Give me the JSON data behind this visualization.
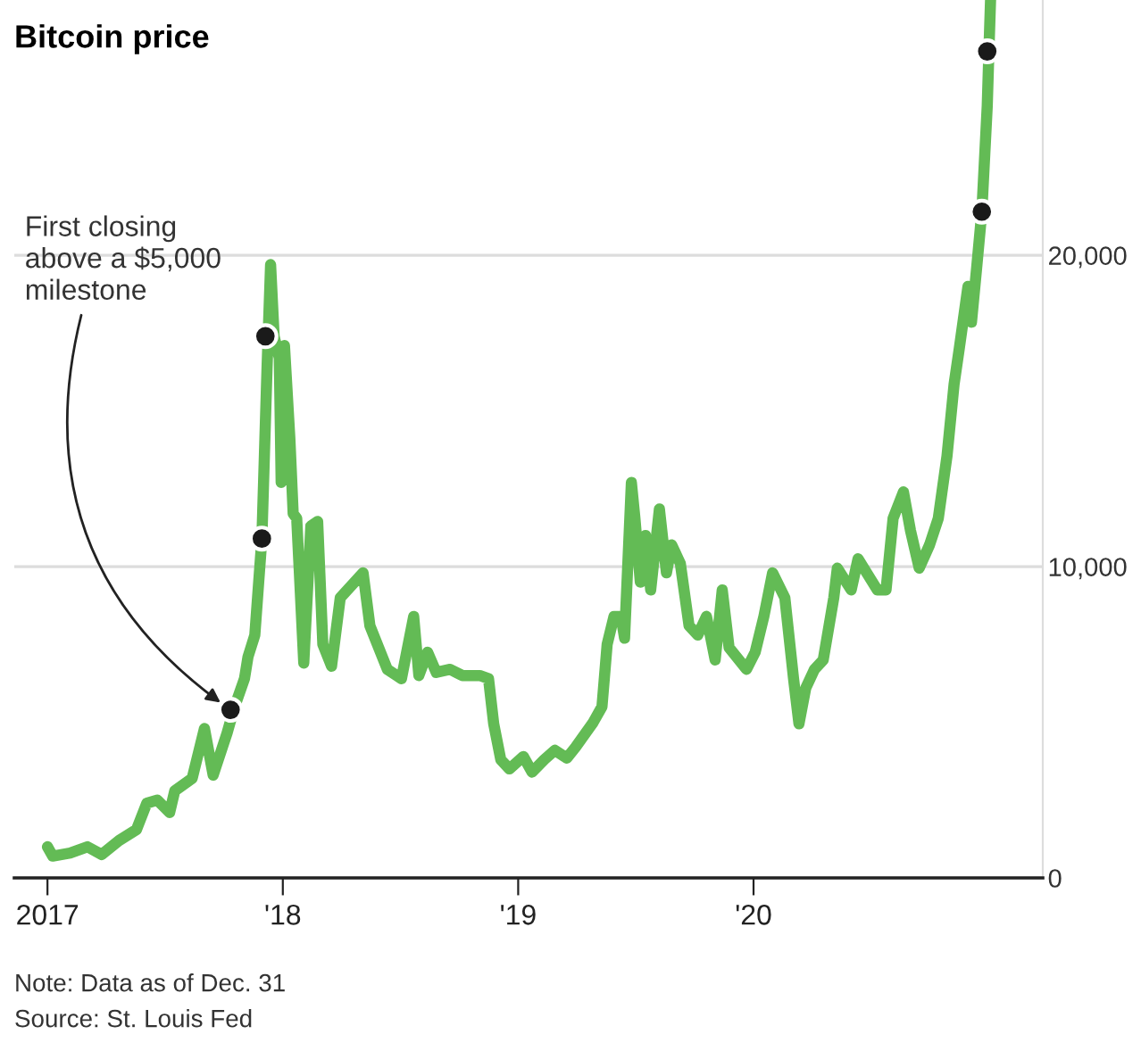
{
  "chart_data": {
    "type": "line",
    "title": "Bitcoin price",
    "x": [
      2017.0,
      2017.022,
      2017.096,
      2017.17,
      2017.23,
      2017.304,
      2017.378,
      2017.422,
      2017.467,
      2017.519,
      2017.541,
      2017.615,
      2017.667,
      2017.704,
      2017.763,
      2017.793,
      2017.837,
      2017.852,
      2017.881,
      2017.911,
      2017.933,
      2017.948,
      2017.963,
      2017.985,
      2017.993,
      2018.007,
      2018.03,
      2018.044,
      2018.059,
      2018.089,
      2018.119,
      2018.148,
      2018.17,
      2018.207,
      2018.244,
      2018.341,
      2018.37,
      2018.444,
      2018.504,
      2018.556,
      2018.578,
      2018.615,
      2018.652,
      2018.711,
      2018.763,
      2018.837,
      2018.874,
      2018.896,
      2018.926,
      2018.963,
      2019.022,
      2019.059,
      2019.111,
      2019.156,
      2019.207,
      2019.244,
      2019.319,
      2019.356,
      2019.378,
      2019.407,
      2019.437,
      2019.452,
      2019.481,
      2019.496,
      2019.519,
      2019.541,
      2019.563,
      2019.6,
      2019.63,
      2019.652,
      2019.689,
      2019.726,
      2019.763,
      2019.8,
      2019.837,
      2019.867,
      2019.896,
      2019.97,
      2020.007,
      2020.044,
      2020.081,
      2020.133,
      2020.17,
      2020.193,
      2020.222,
      2020.259,
      2020.296,
      2020.341,
      2020.356,
      2020.415,
      2020.444,
      2020.489,
      2020.526,
      2020.563,
      2020.593,
      2020.637,
      2020.667,
      2020.704,
      2020.748,
      2020.785,
      2020.822,
      2020.852,
      2020.874,
      2020.911,
      2020.926,
      2020.948,
      2020.97,
      2020.993,
      2021.0,
      2021.007
    ],
    "series": [
      {
        "color": "#63bb55",
        "values": [
          1000,
          700,
          800,
          1000,
          750,
          1200,
          1550,
          2400,
          2500,
          2100,
          2800,
          3200,
          4800,
          3300,
          4650,
          5450,
          6400,
          7100,
          7800,
          10900,
          16400,
          19700,
          17400,
          16700,
          12700,
          17100,
          14100,
          11700,
          11550,
          6900,
          11300,
          11450,
          7500,
          6800,
          9000,
          9800,
          8100,
          6700,
          6400,
          8400,
          6500,
          7250,
          6600,
          6700,
          6500,
          6500,
          6400,
          4950,
          3800,
          3500,
          3900,
          3400,
          3800,
          4100,
          3850,
          4200,
          5000,
          5500,
          7500,
          8400,
          8400,
          7700,
          12700,
          11550,
          9500,
          11000,
          9250,
          11850,
          9800,
          10700,
          10100,
          8100,
          7800,
          8400,
          7000,
          9250,
          7400,
          6700,
          7250,
          8400,
          9800,
          9000,
          6400,
          4950,
          6100,
          6700,
          7000,
          9000,
          9950,
          9250,
          10250,
          9700,
          9250,
          9250,
          11550,
          12400,
          11150,
          9950,
          10700,
          11550,
          13550,
          15850,
          17000,
          19000,
          17850,
          19600,
          21400,
          24800,
          26550,
          28200
        ]
      },
      {
        "type": "scatter",
        "marker": "circle",
        "color": "#1a1a1a",
        "x": [
          2017.778,
          2017.911,
          2017.926,
          2020.97,
          2020.993
        ],
        "values": [
          5400,
          10900,
          17400,
          21400,
          26550
        ]
      }
    ],
    "xlim": [
      2016.859,
      2021.229
    ],
    "ylim": [
      0,
      28200
    ],
    "xticks": [
      {
        "value": 2017,
        "label": "2017"
      },
      {
        "value": 2018,
        "label": "'18"
      },
      {
        "value": 2019,
        "label": "'19"
      },
      {
        "value": 2020,
        "label": "'20"
      }
    ],
    "yticks": [
      0,
      {
        "value": 10000,
        "label": "10,000"
      },
      {
        "value": 20000,
        "label": "20,000"
      }
    ],
    "grid": "y",
    "annotations": [
      {
        "text": "First closing\nabove a $5,000\nmilestone",
        "x": 2017.778,
        "y": 5400
      },
      "Note: Data as of Dec. 31",
      "Source: St. Louis Fed"
    ]
  }
}
